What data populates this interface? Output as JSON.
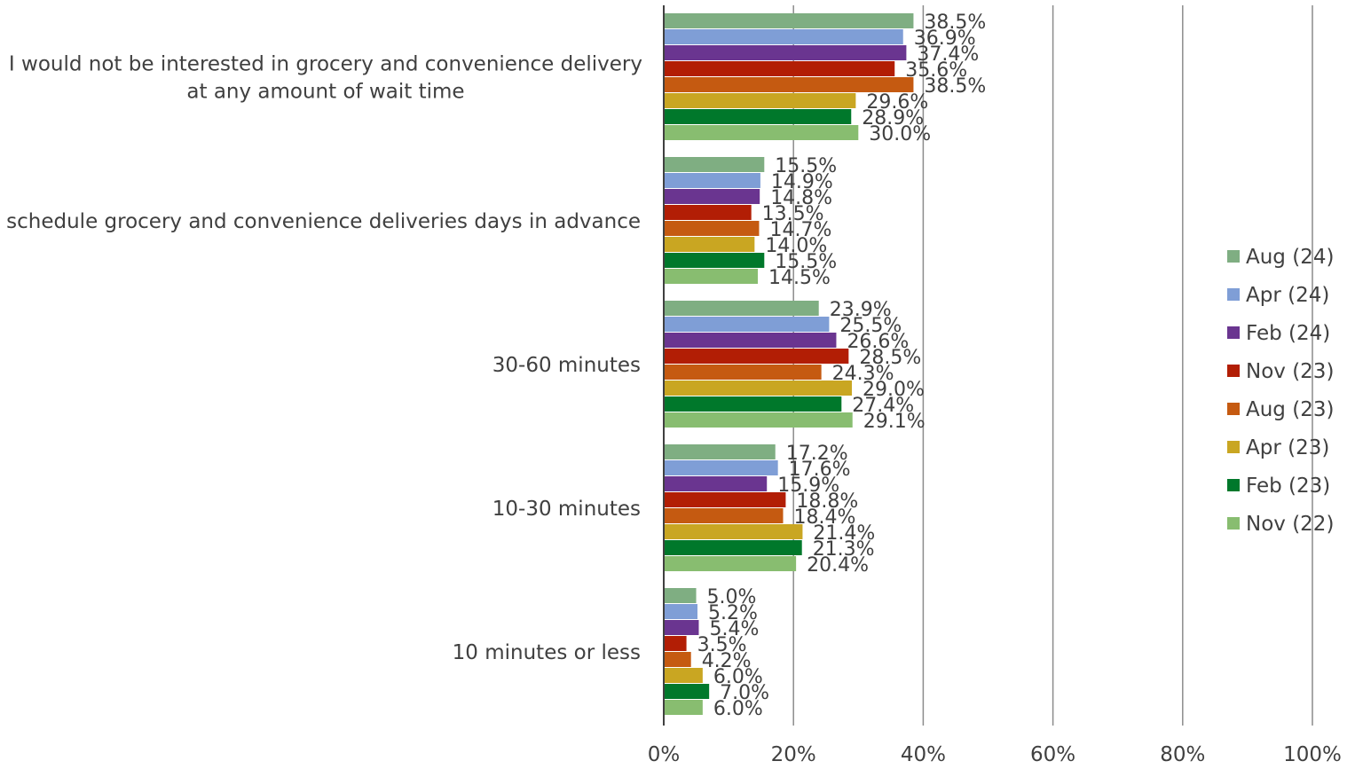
{
  "chart_data": {
    "type": "bar",
    "orientation": "horizontal",
    "categories": [
      "I would not be interested in grocery and convenience delivery at any amount of wait time",
      "I schedule grocery and convenience deliveries days in advance",
      "30-60 minutes",
      "10-30 minutes",
      "10 minutes or less"
    ],
    "category_lines": [
      [
        "I would not be interested in grocery and convenience delivery",
        "at any amount of wait time"
      ],
      [
        "I schedule grocery and convenience deliveries days in advance"
      ],
      [
        "30-60 minutes"
      ],
      [
        "10-30 minutes"
      ],
      [
        "10 minutes or less"
      ]
    ],
    "series": [
      {
        "name": "Aug (24)",
        "color": "#7fae82",
        "values": [
          38.5,
          15.5,
          23.9,
          17.2,
          5.0
        ]
      },
      {
        "name": "Apr (24)",
        "color": "#7f9ed6",
        "values": [
          36.9,
          14.9,
          25.5,
          17.6,
          5.2
        ]
      },
      {
        "name": "Feb (24)",
        "color": "#6a3590",
        "values": [
          37.4,
          14.8,
          26.6,
          15.9,
          5.4
        ]
      },
      {
        "name": "Nov (23)",
        "color": "#b21e05",
        "values": [
          35.6,
          13.5,
          28.5,
          18.8,
          3.5
        ]
      },
      {
        "name": "Aug (23)",
        "color": "#c55a11",
        "values": [
          38.5,
          14.7,
          24.3,
          18.4,
          4.2
        ]
      },
      {
        "name": "Apr (23)",
        "color": "#c9a622",
        "values": [
          29.6,
          14.0,
          29.0,
          21.4,
          6.0
        ]
      },
      {
        "name": "Feb (23)",
        "color": "#00782b",
        "values": [
          28.9,
          15.5,
          27.4,
          21.3,
          7.0
        ]
      },
      {
        "name": "Nov (22)",
        "color": "#88bd70",
        "values": [
          30.0,
          14.5,
          29.1,
          20.4,
          6.0
        ]
      }
    ],
    "xlim": [
      0,
      100
    ],
    "x_ticks": [
      "0%",
      "20%",
      "40%",
      "60%",
      "80%",
      "100%"
    ],
    "x_tick_values": [
      0,
      20,
      40,
      60,
      80,
      100
    ],
    "value_suffix": "%",
    "grid": true,
    "legend_position": "right",
    "title": "",
    "xlabel": "",
    "ylabel": ""
  }
}
